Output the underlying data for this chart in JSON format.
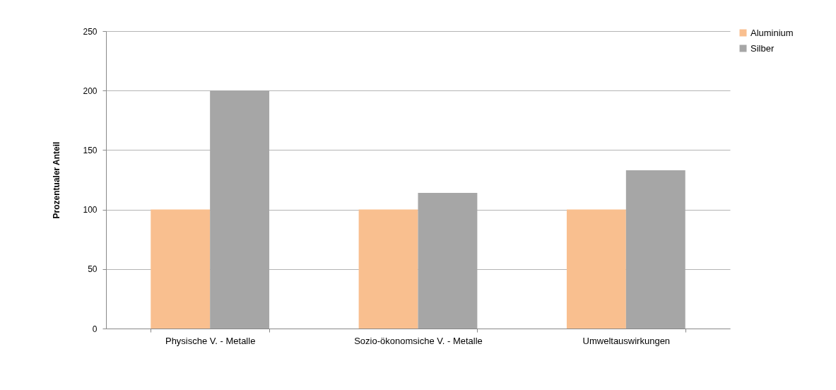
{
  "chart_data": {
    "type": "bar",
    "ylabel": "Prozentualer Anteil",
    "categories": [
      "Physische V. - Metalle",
      "Sozio-ökonomsiche V. - Metalle",
      "Umweltauswirkungen"
    ],
    "series": [
      {
        "name": "Aluminium",
        "color": "#f9bf8f",
        "values": [
          100,
          100,
          100
        ]
      },
      {
        "name": "Silber",
        "color": "#a6a6a6",
        "values": [
          200,
          114,
          133
        ]
      }
    ],
    "ylim": [
      0,
      250
    ],
    "yticks": [
      0,
      50,
      100,
      150,
      200,
      250
    ],
    "grid": "y",
    "legend": "top right"
  }
}
